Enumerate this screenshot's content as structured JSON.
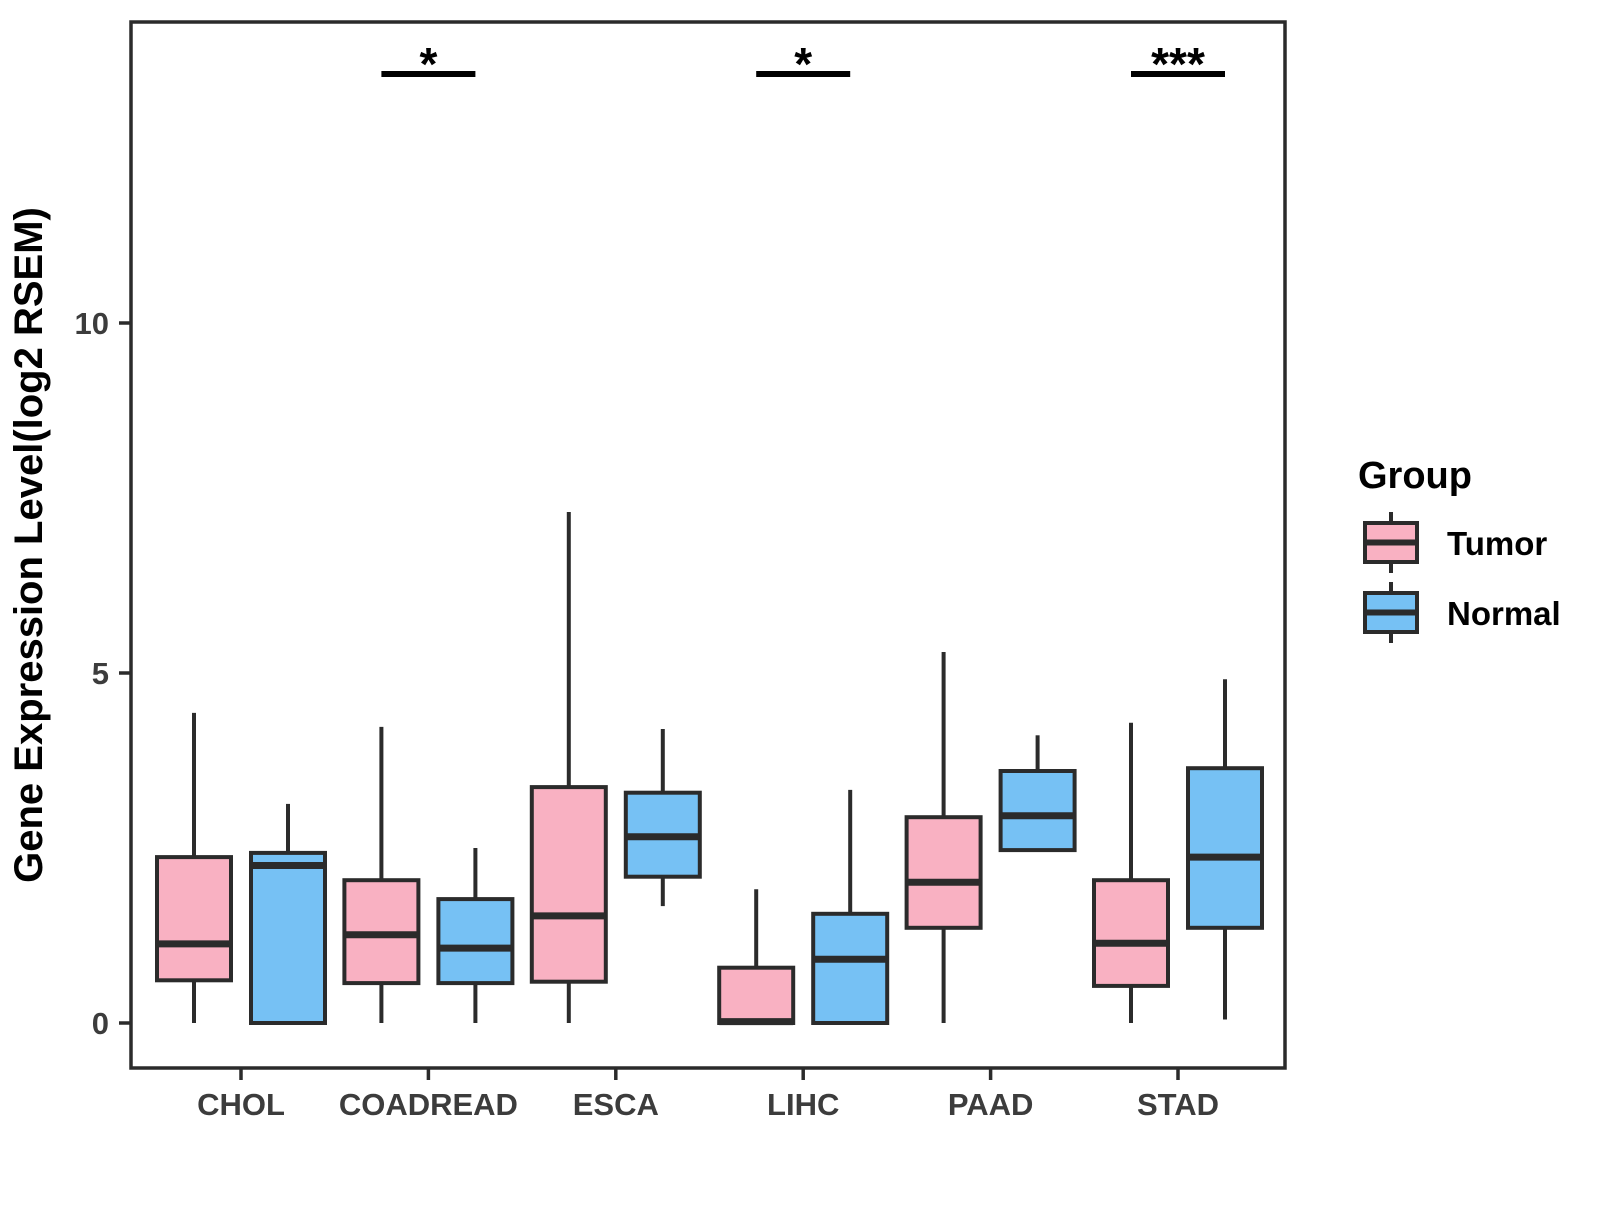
{
  "chart_data": {
    "type": "boxplot",
    "title": "",
    "xlabel": "",
    "ylabel": "Gene Expression Level(log2 RSEM)",
    "yticks": [
      0,
      5,
      10
    ],
    "ylim": [
      -0.65,
      14.3
    ],
    "grid": false,
    "categories": [
      "CHOL",
      "COADREAD",
      "ESCA",
      "LIHC",
      "PAAD",
      "STAD"
    ],
    "groups": [
      "Tumor",
      "Normal"
    ],
    "colors": {
      "Tumor": "#F9B1C2",
      "Normal": "#76C1F4",
      "stroke": "#2B2B2B",
      "axis_text": "#3C3C3C"
    },
    "series": [
      {
        "name": "Tumor",
        "boxes": [
          {
            "category": "CHOL",
            "min": 0,
            "q1": 0.61,
            "median": 1.13,
            "q3": 2.37,
            "max": 4.43
          },
          {
            "category": "COADREAD",
            "min": 0,
            "q1": 0.57,
            "median": 1.26,
            "q3": 2.04,
            "max": 4.23
          },
          {
            "category": "ESCA",
            "min": 0,
            "q1": 0.59,
            "median": 1.53,
            "q3": 3.37,
            "max": 7.3
          },
          {
            "category": "LIHC",
            "min": 0,
            "q1": 0,
            "median": 0.02,
            "q3": 0.79,
            "max": 1.91
          },
          {
            "category": "PAAD",
            "min": 0,
            "q1": 1.36,
            "median": 2.01,
            "q3": 2.94,
            "max": 5.3
          },
          {
            "category": "STAD",
            "min": 0,
            "q1": 0.53,
            "median": 1.14,
            "q3": 2.04,
            "max": 4.29
          }
        ]
      },
      {
        "name": "Normal",
        "boxes": [
          {
            "category": "CHOL",
            "min": 0,
            "q1": 0,
            "median": 2.25,
            "q3": 2.43,
            "max": 3.13
          },
          {
            "category": "COADREAD",
            "min": 0,
            "q1": 0.57,
            "median": 1.07,
            "q3": 1.77,
            "max": 2.5
          },
          {
            "category": "ESCA",
            "min": 1.67,
            "q1": 2.09,
            "median": 2.66,
            "q3": 3.29,
            "max": 4.2
          },
          {
            "category": "LIHC",
            "min": 0,
            "q1": 0,
            "median": 0.91,
            "q3": 1.56,
            "max": 3.33
          },
          {
            "category": "PAAD",
            "min": 2.47,
            "q1": 2.47,
            "median": 2.96,
            "q3": 3.6,
            "max": 4.11
          },
          {
            "category": "STAD",
            "min": 0.05,
            "q1": 1.36,
            "median": 2.37,
            "q3": 3.64,
            "max": 4.91
          }
        ]
      }
    ],
    "significance": [
      {
        "category": "COADREAD",
        "label": "*"
      },
      {
        "category": "LIHC",
        "label": "*"
      },
      {
        "category": "STAD",
        "label": "***"
      }
    ],
    "legend": {
      "title": "Group",
      "entries": [
        "Tumor",
        "Normal"
      ],
      "position": "right"
    }
  }
}
